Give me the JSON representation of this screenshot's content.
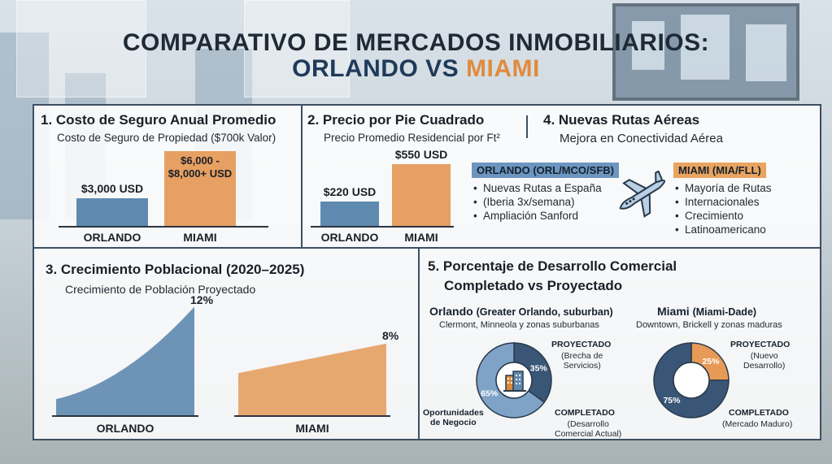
{
  "header": {
    "title_line1": "COMPARATIVO DE MERCADOS INMOBILIARIOS:",
    "orlando": "ORLANDO",
    "vs": "VS",
    "miami": "MIAMI"
  },
  "colors": {
    "orlando": "#5f8ab0",
    "miami": "#e6a062",
    "dark": "#3d4f63"
  },
  "sections": {
    "insurance": {
      "title": "1. Costo de Seguro Anual Promedio",
      "subtitle": "Costo de Seguro de Propiedad ($700k Valor)"
    },
    "price": {
      "title": "2. Precio por Pie Cuadrado",
      "subtitle": "Precio Promedio Residencial por Ft²"
    },
    "routes": {
      "title": "4. Nuevas Rutas Aéreas",
      "subtitle": "Mejora en Conectividad Aérea",
      "plane_icon": "airplane-icon",
      "orlando": {
        "heading": "ORLANDO (ORL/MCO/SFB)",
        "items": [
          "Nuevas Rutas a España",
          "(Iberia 3x/semana)",
          "Ampliación Sanford"
        ]
      },
      "miami": {
        "heading": "MIAMI (MIA/FLL)",
        "items": [
          "Mayoría de Rutas",
          "Internacionales",
          "Crecimiento",
          "Latinoamericano"
        ]
      }
    },
    "population": {
      "title": "3. Crecimiento Poblacional (2020–2025)",
      "subtitle": "Crecimiento de Población Proyectado"
    },
    "development": {
      "title_line1": "5. Porcentaje de Desarrollo Comercial",
      "title_line2": "Completado vs Proyectado",
      "center_icon": "buildings-icon",
      "orlando": {
        "city": "Orlando",
        "region": "(Greater Orlando, suburban)",
        "desc": "Clermont, Minneola y zonas suburbanas",
        "projected_title": "PROYECTADO",
        "projected_sub": [
          "(Brecha de",
          "Servicios)"
        ],
        "completed_title": "COMPLETADO",
        "completed_sub": [
          "(Desarrollo",
          "Comercial Actual)"
        ],
        "opportunity_label": [
          "Oportunidades",
          "de Negocio"
        ]
      },
      "miami": {
        "city": "Miami",
        "region": "(Miami-Dade)",
        "desc": "Downtown, Brickell y zonas maduras",
        "projected_title": "PROYECTADO",
        "projected_sub": [
          "(Nuevo",
          "Desarrollo)"
        ],
        "completed_title": "COMPLETADO",
        "completed_sub": [
          "(Mercado Maduro)"
        ]
      }
    }
  },
  "chart_data": [
    {
      "type": "bar",
      "title": "1. Costo de Seguro Anual Promedio",
      "subtitle": "Costo de Seguro de Propiedad ($700k Valor)",
      "categories": [
        "ORLANDO",
        "MIAMI"
      ],
      "values": [
        3000,
        8000
      ],
      "data_labels": [
        "$3,000 USD",
        "$6,000 - $8,000+ USD"
      ]
    },
    {
      "type": "bar",
      "title": "2. Precio por Pie Cuadrado",
      "subtitle": "Precio Promedio Residencial por Ft²",
      "categories": [
        "ORLANDO",
        "MIAMI"
      ],
      "values": [
        220,
        550
      ],
      "data_labels": [
        "$220 USD",
        "$550 USD"
      ]
    },
    {
      "type": "area",
      "title": "3. Crecimiento Poblacional (2020–2025)",
      "subtitle": "Crecimiento de Población Proyectado",
      "categories": [
        "ORLANDO",
        "MIAMI"
      ],
      "values": [
        12,
        8
      ],
      "data_labels": [
        "12%",
        "8%"
      ]
    },
    {
      "type": "pie",
      "title": "Orlando (Greater Orlando, suburban)",
      "labels": [
        "PROYECTADO",
        "COMPLETADO"
      ],
      "values": [
        35,
        65
      ],
      "data_labels": [
        "35%",
        "65%"
      ]
    },
    {
      "type": "pie",
      "title": "Miami (Miami-Dade)",
      "labels": [
        "PROYECTADO",
        "COMPLETADO"
      ],
      "values": [
        25,
        75
      ],
      "data_labels": [
        "25%",
        "75%"
      ]
    }
  ]
}
